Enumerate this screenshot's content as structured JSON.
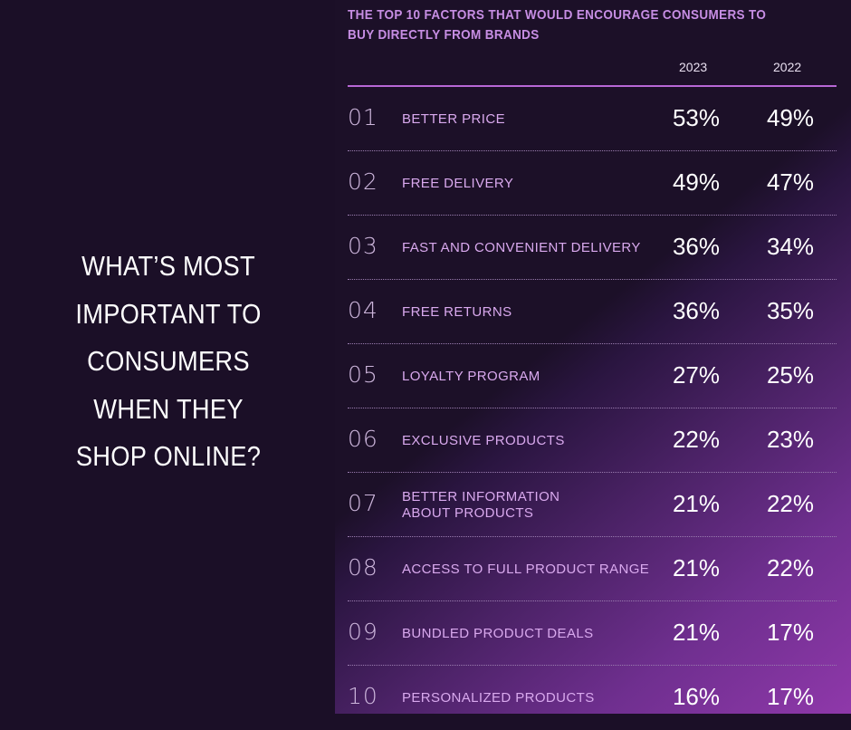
{
  "headline_lines": [
    "WHAT’S MOST",
    "IMPORTANT TO",
    "CONSUMERS",
    "WHEN THEY",
    "SHOP ONLINE?"
  ],
  "chart_data": {
    "type": "table",
    "title": "THE TOP 10 FACTORS THAT WOULD ENCOURAGE CONSUMERS TO BUY DIRECTLY FROM BRANDS",
    "columns": [
      "2023",
      "2022"
    ],
    "rows": [
      {
        "rank": "01",
        "label": [
          "BETTER PRICE"
        ],
        "v2023": "53%",
        "v2022": "49%"
      },
      {
        "rank": "02",
        "label": [
          "FREE DELIVERY"
        ],
        "v2023": "49%",
        "v2022": "47%"
      },
      {
        "rank": "03",
        "label": [
          "FAST AND CONVENIENT DELIVERY"
        ],
        "v2023": "36%",
        "v2022": "34%"
      },
      {
        "rank": "04",
        "label": [
          "FREE RETURNS"
        ],
        "v2023": "36%",
        "v2022": "35%"
      },
      {
        "rank": "05",
        "label": [
          "LOYALTY PROGRAM"
        ],
        "v2023": "27%",
        "v2022": "25%"
      },
      {
        "rank": "06",
        "label": [
          "EXCLUSIVE PRODUCTS"
        ],
        "v2023": "22%",
        "v2022": "23%"
      },
      {
        "rank": "07",
        "label": [
          "BETTER INFORMATION",
          "ABOUT PRODUCTS"
        ],
        "v2023": "21%",
        "v2022": "22%"
      },
      {
        "rank": "08",
        "label": [
          "ACCESS TO FULL PRODUCT RANGE"
        ],
        "v2023": "21%",
        "v2022": "22%"
      },
      {
        "rank": "09",
        "label": [
          "BUNDLED PRODUCT DEALS"
        ],
        "v2023": "21%",
        "v2022": "17%"
      },
      {
        "rank": "10",
        "label": [
          "PERSONALIZED PRODUCTS"
        ],
        "v2023": "16%",
        "v2022": "17%"
      }
    ]
  },
  "colors": {
    "accent": "#b867d6",
    "label_text": "#d9a9ee",
    "title_text": "#c78ee4",
    "background_dark": "#1b0f27",
    "gradient_end": "#8f38aa"
  }
}
